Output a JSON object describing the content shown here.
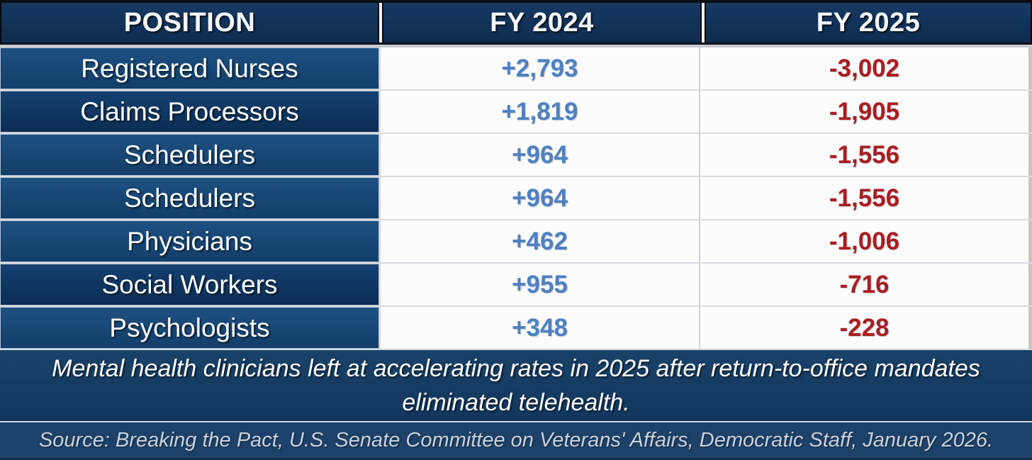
{
  "chart_data": {
    "type": "table",
    "columns": [
      "POSITION",
      "FY 2024",
      "FY 2025"
    ],
    "rows": [
      {
        "position": "Registered Nurses",
        "fy2024": "+2,793",
        "fy2025": "-3,002"
      },
      {
        "position": "Claims Processors",
        "fy2024": "+1,819",
        "fy2025": "-1,905"
      },
      {
        "position": "Schedulers",
        "fy2024": "+964",
        "fy2025": "-1,556"
      },
      {
        "position": "Schedulers",
        "fy2024": "+964",
        "fy2025": "-1,556"
      },
      {
        "position": "Physicians",
        "fy2024": "+462",
        "fy2025": "-1,006"
      },
      {
        "position": "Social Workers",
        "fy2024": "+955",
        "fy2025": "-716"
      },
      {
        "position": "Psychologists",
        "fy2024": "+348",
        "fy2025": "-228"
      }
    ],
    "note": "Mental health clinicians left at accelerating rates in 2025 after return-to-office mandates eliminated telehealth.",
    "source": "Source: Breaking the Pact, U.S. Senate Committee on Veterans' Affairs, Democratic Staff, January 2026."
  },
  "colors": {
    "header_navy": "#0e2c50",
    "row_navy": "#174a7c",
    "row_navy_dark": "#0d3259",
    "positive_blue": "#4d81c3",
    "negative_red": "#a91e23",
    "note_band_navy": "#12365d",
    "source_band_navy": "#1d4269"
  }
}
